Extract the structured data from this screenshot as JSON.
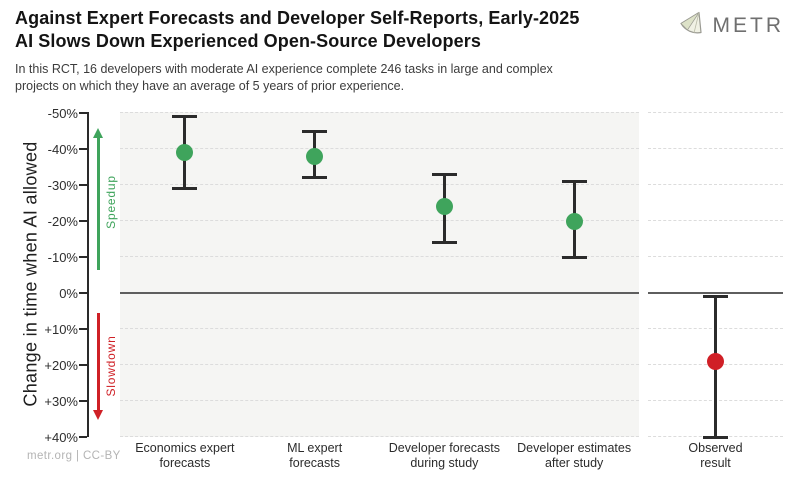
{
  "header": {
    "title": "Against Expert Forecasts and Developer Self-Reports, Early-2025\nAI Slows Down Experienced Open-Source Developers",
    "subtitle": "In this RCT, 16 developers with moderate AI experience complete 246 tasks in large and complex\nprojects on which they have an average of 5 years of prior experience.",
    "logo_text": "METR"
  },
  "footer": {
    "credit": "metr.org | CC-BY"
  },
  "colors": {
    "speedup_green": "#3fa45c",
    "slowdown_red": "#cf2026",
    "error_bar": "#2b2b2b",
    "panel_background": "#f5f5f3",
    "gridline": "#dcdcdc",
    "zero_line": "#5e5e5e"
  },
  "chart_data": {
    "type": "scatter",
    "title": "Against Expert Forecasts and Developer Self-Reports, Early-2025 AI Slows Down Experienced Open-Source Developers",
    "ylabel": "Change in time when AI allowed",
    "ylim": [
      -50,
      40
    ],
    "y_axis_inverted": true,
    "grid": "dashed horizontal lines every 10%, solid line at 0%",
    "legend_position": "none",
    "yticks": [
      {
        "v": -50,
        "label": "-50%"
      },
      {
        "v": -40,
        "label": "-40%"
      },
      {
        "v": -30,
        "label": "-30%"
      },
      {
        "v": -20,
        "label": "-20%"
      },
      {
        "v": -10,
        "label": "-10%"
      },
      {
        "v": 0,
        "label": "0%"
      },
      {
        "v": 10,
        "label": "+10%"
      },
      {
        "v": 20,
        "label": "+20%"
      },
      {
        "v": 30,
        "label": "+30%"
      },
      {
        "v": 40,
        "label": "+40%"
      }
    ],
    "annotations": {
      "speedup_label": "Speedup",
      "slowdown_label": "Slowdown"
    },
    "categories": [
      "Economics expert forecasts",
      "ML expert forecasts",
      "Developer forecasts during study",
      "Developer estimates after study",
      "Observed result"
    ],
    "points": [
      {
        "category": "Economics expert forecasts",
        "label_lines": "Economics expert\nforecasts",
        "value": -39,
        "ci": [
          -49,
          -29
        ],
        "color": "#3fa45c",
        "panel": "main"
      },
      {
        "category": "ML expert forecasts",
        "label_lines": "ML expert\nforecasts",
        "value": -38,
        "ci": [
          -45,
          -32
        ],
        "color": "#3fa45c",
        "panel": "main"
      },
      {
        "category": "Developer forecasts during study",
        "label_lines": "Developer forecasts\nduring study",
        "value": -24,
        "ci": [
          -33,
          -14
        ],
        "color": "#3fa45c",
        "panel": "main"
      },
      {
        "category": "Developer estimates after study",
        "label_lines": "Developer estimates\nafter study",
        "value": -20,
        "ci": [
          -31,
          -10
        ],
        "color": "#3fa45c",
        "panel": "main"
      },
      {
        "category": "Observed result",
        "label_lines": "Observed\nresult",
        "value": 19,
        "ci": [
          1,
          40
        ],
        "color": "#d01f26",
        "panel": "observed"
      }
    ]
  }
}
